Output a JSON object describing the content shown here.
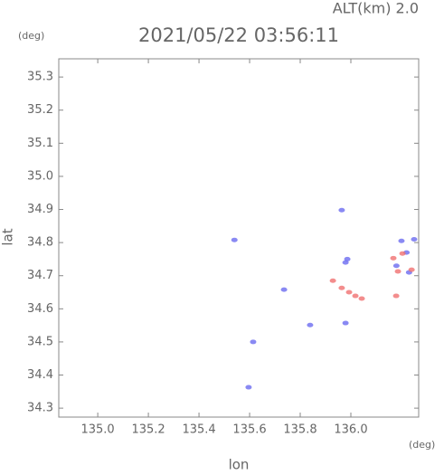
{
  "chart_data": {
    "type": "scatter",
    "title": "2021/05/22 03:56:11",
    "subtitle": "ALT(km) 2.0",
    "x_label": "lon",
    "y_label": "lat",
    "x_unit": "(deg)",
    "y_unit": "(deg)",
    "xlim": [
      134.846,
      136.268
    ],
    "ylim": [
      34.273,
      35.355
    ],
    "xticks": [
      {
        "value": 135,
        "label": "135.0"
      },
      135.2,
      135.4,
      135.6,
      135.8,
      {
        "value": 136,
        "label": "136.0"
      }
    ],
    "yticks": [
      34.3,
      34.4,
      34.5,
      34.6,
      34.7,
      34.8,
      34.9,
      {
        "value": 35,
        "label": "35.0"
      },
      35.1,
      35.2,
      35.3
    ],
    "series": [
      {
        "color": "#6b6bf0",
        "x": [
          135.54,
          135.964,
          135.614,
          135.596,
          135.839,
          135.979,
          135.736,
          136.2,
          136.25,
          136.22,
          136.18,
          136.23,
          135.979,
          135.986
        ],
        "y": [
          34.808,
          34.898,
          34.5,
          34.363,
          34.551,
          34.557,
          34.658,
          34.805,
          34.81,
          34.77,
          34.73,
          34.71,
          34.74,
          34.75
        ]
      },
      {
        "color": "#f07070",
        "x": [
          135.929,
          135.964,
          135.993,
          136.018,
          136.043,
          136.186,
          136.24,
          136.204,
          136.168,
          136.179
        ],
        "y": [
          34.685,
          34.663,
          34.65,
          34.639,
          34.631,
          34.713,
          34.718,
          34.767,
          34.753,
          34.639
        ]
      }
    ]
  }
}
